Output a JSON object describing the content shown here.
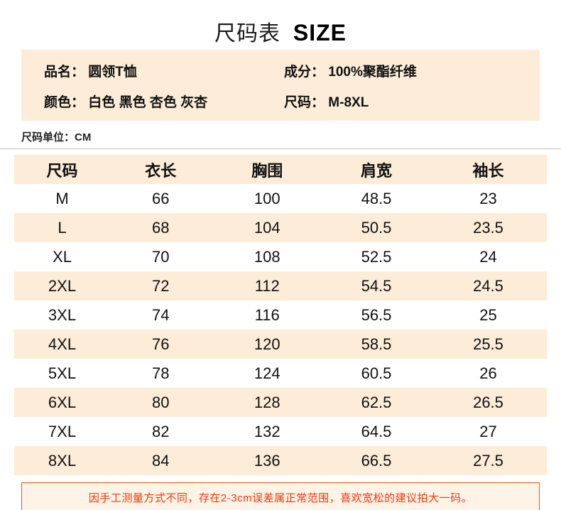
{
  "title": {
    "cn": "尺码表",
    "en": "SIZE"
  },
  "info": {
    "rows": [
      {
        "label": "品名：",
        "value": "圆领T恤"
      },
      {
        "label": "成分：",
        "value": "100%聚酯纤维"
      },
      {
        "label": "颜色：",
        "value": "白色 黑色 杏色 灰杏"
      },
      {
        "label": "尺码：",
        "value": "M-8XL"
      }
    ]
  },
  "unit": {
    "label": "尺码单位：",
    "value": "CM"
  },
  "table": {
    "headers": [
      "尺码",
      "衣长",
      "胸围",
      "肩宽",
      "袖长"
    ],
    "rows": [
      [
        "M",
        "66",
        "100",
        "48.5",
        "23"
      ],
      [
        "L",
        "68",
        "104",
        "50.5",
        "23.5"
      ],
      [
        "XL",
        "70",
        "108",
        "52.5",
        "24"
      ],
      [
        "2XL",
        "72",
        "112",
        "54.5",
        "24.5"
      ],
      [
        "3XL",
        "74",
        "116",
        "56.5",
        "25"
      ],
      [
        "4XL",
        "76",
        "120",
        "58.5",
        "25.5"
      ],
      [
        "5XL",
        "78",
        "124",
        "60.5",
        "26"
      ],
      [
        "6XL",
        "80",
        "128",
        "62.5",
        "26.5"
      ],
      [
        "7XL",
        "82",
        "132",
        "64.5",
        "27"
      ],
      [
        "8XL",
        "84",
        "136",
        "66.5",
        "27.5"
      ]
    ]
  },
  "note": "因手工测量方式不同，存在2-3cm误差属正常范围，喜欢宽松的建议拍大一码。",
  "colors": {
    "beige": "#fcecd8",
    "note_red": "#e83a0f",
    "note_border": "#e8581c"
  }
}
